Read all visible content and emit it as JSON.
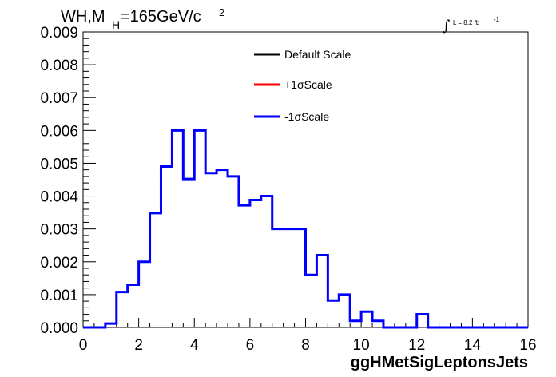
{
  "title": {
    "prefix": "WH,M",
    "subscript": "H",
    "value": "=165GeV/c",
    "superscript": "2"
  },
  "lumi": {
    "integral": "∫",
    "text": "L = 8.2 fb",
    "superscript": "-1"
  },
  "legend": {
    "entries": [
      {
        "label": "Default Scale",
        "color": "#000000"
      },
      {
        "label": "+1σScale",
        "color": "#ff0000"
      },
      {
        "label": "-1σScale",
        "color": "#0000ff"
      }
    ]
  },
  "chart_data": {
    "type": "histogram",
    "title": "WH,M_H=165GeV/c^2",
    "xlabel": "ggHMetSigLeptonsJets",
    "ylabel": "",
    "xlim": [
      0,
      16
    ],
    "ylim": [
      0,
      0.009
    ],
    "bin_width": 0.4,
    "bin_edges_start": 0,
    "x_ticks": [
      "0",
      "2",
      "4",
      "6",
      "8",
      "10",
      "12",
      "14",
      "16"
    ],
    "y_ticks": [
      "0.000",
      "0.001",
      "0.002",
      "0.003",
      "0.004",
      "0.005",
      "0.006",
      "0.007",
      "0.008",
      "0.009"
    ],
    "series": [
      {
        "name": "-1σScale",
        "color": "#0000ff",
        "values": [
          0,
          0,
          0.00012,
          0.00108,
          0.0013,
          0.002,
          0.00348,
          0.0049,
          0.006,
          0.00452,
          0.006,
          0.0047,
          0.0048,
          0.0046,
          0.00372,
          0.00388,
          0.004,
          0.003,
          0.003,
          0.003,
          0.0016,
          0.0022,
          0.00082,
          0.001,
          0.0002,
          0.00048,
          0.0002,
          0,
          0,
          0,
          0.0004,
          0,
          0,
          0,
          0,
          0,
          0,
          0,
          0,
          0
        ]
      }
    ],
    "legend_position": "top-right"
  }
}
